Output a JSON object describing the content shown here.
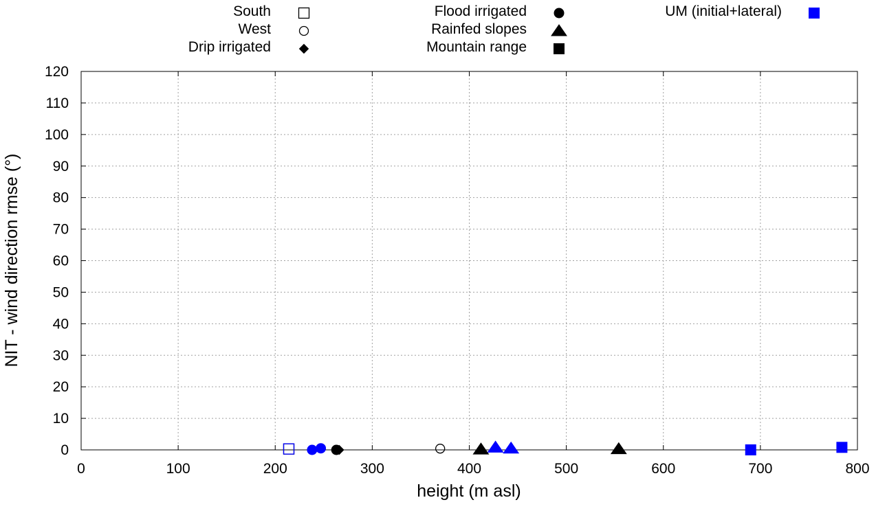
{
  "chart_data": {
    "type": "scatter",
    "xlabel": "height (m asl)",
    "ylabel": "NIT - wind direction rmse (°)",
    "xlim": [
      0,
      800
    ],
    "ylim": [
      0,
      120
    ],
    "x_ticks": [
      0,
      100,
      200,
      300,
      400,
      500,
      600,
      700,
      800
    ],
    "y_ticks": [
      0,
      10,
      20,
      30,
      40,
      50,
      60,
      70,
      80,
      90,
      100,
      110,
      120
    ],
    "grid": true,
    "legend_position": "top, outside plot",
    "series": [
      {
        "name": "South",
        "marker": "square-open",
        "color": "#000000",
        "points": [
          {
            "x": 214,
            "y": 0.3
          }
        ]
      },
      {
        "name": "West",
        "marker": "circle-open",
        "color": "#000000",
        "points": [
          {
            "x": 370,
            "y": 0.4
          }
        ]
      },
      {
        "name": "Drip irrigated",
        "marker": "diamond",
        "color": "#000000",
        "points": [
          {
            "x": 266,
            "y": 0
          }
        ]
      },
      {
        "name": "Flood irrigated",
        "marker": "circle",
        "color": "#000000",
        "points": [
          {
            "x": 263,
            "y": 0
          }
        ]
      },
      {
        "name": "Rainfed slopes",
        "marker": "triangle",
        "color": "#000000",
        "points": [
          {
            "x": 412,
            "y": 0.2
          },
          {
            "x": 554,
            "y": 0.3
          }
        ]
      },
      {
        "name": "Mountain range",
        "marker": "square",
        "color": "#000000",
        "points": []
      },
      {
        "name": "UM (initial+lateral)",
        "marker": "square",
        "color": "#0000ff",
        "points": []
      }
    ],
    "extra_points": [
      {
        "marker": "square-open",
        "color": "#0000ff",
        "x": 214,
        "y": 0.3
      },
      {
        "marker": "circle",
        "color": "#0000ff",
        "x": 238,
        "y": 0
      },
      {
        "marker": "circle",
        "color": "#0000ff",
        "x": 247,
        "y": 0.5
      },
      {
        "marker": "triangle",
        "color": "#0000ff",
        "x": 427,
        "y": 0.8
      },
      {
        "marker": "triangle",
        "color": "#0000ff",
        "x": 443,
        "y": 0.5
      },
      {
        "marker": "square",
        "color": "#0000ff",
        "x": 690,
        "y": 0
      },
      {
        "marker": "square",
        "color": "#0000ff",
        "x": 784,
        "y": 0.8
      }
    ]
  }
}
